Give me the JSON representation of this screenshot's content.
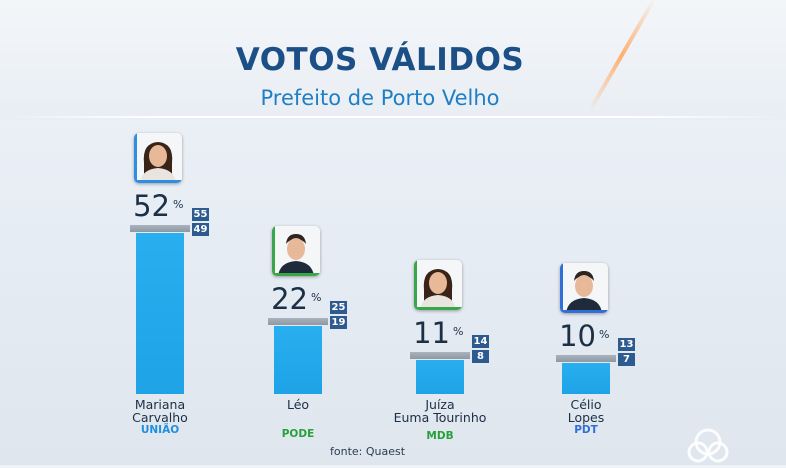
{
  "header": {
    "title": "VOTOS VÁLIDOS",
    "subtitle": "Prefeito de Porto Velho",
    "title_color": "#1b4f86",
    "subtitle_color": "#1f7fc4"
  },
  "chart_data": {
    "type": "bar",
    "title": "VOTOS VÁLIDOS",
    "subtitle": "Prefeito de Porto Velho",
    "categories": [
      "Mariana Carvalho",
      "Léo",
      "Juíza Euma Tourinho",
      "Célio Lopes"
    ],
    "values": [
      52,
      22,
      11,
      10
    ],
    "unit": "%",
    "ranges": [
      {
        "high": 55,
        "low": 49
      },
      {
        "high": 25,
        "low": 19
      },
      {
        "high": 14,
        "low": 8
      },
      {
        "high": 13,
        "low": 7
      }
    ],
    "bar_color": "#1ea3e6",
    "range_box_color": "#2e5b8f",
    "source": "fonte: Quaest",
    "grid": false
  },
  "candidates": [
    {
      "name_line1": "Mariana",
      "name_line2": "Carvalho",
      "party": "UNIÃO",
      "party_color": "#1f8fe0",
      "pct": "52",
      "pct_symbol": "%",
      "high": "55",
      "low": "49",
      "accent": "#2f8de4",
      "photo_icon": "person-photo-woman"
    },
    {
      "name_line1": "Léo",
      "name_line2": "",
      "party": "PODE",
      "party_color": "#27a13a",
      "pct": "22",
      "pct_symbol": "%",
      "high": "25",
      "low": "19",
      "accent": "#3aa64a",
      "photo_icon": "person-photo-man"
    },
    {
      "name_line1": "Juíza",
      "name_line2": "Euma Tourinho",
      "party": "MDB",
      "party_color": "#27a13a",
      "pct": "11",
      "pct_symbol": "%",
      "high": "14",
      "low": "8",
      "accent": "#3aa64a",
      "photo_icon": "person-photo-woman"
    },
    {
      "name_line1": "Célio",
      "name_line2": "Lopes",
      "party": "PDT",
      "party_color": "#2f6fd6",
      "pct": "10",
      "pct_symbol": "%",
      "high": "13",
      "low": "7",
      "accent": "#2f6fd6",
      "photo_icon": "person-photo-man"
    }
  ],
  "footer": {
    "source": "fonte: Quaest",
    "logo_icon": "broadcaster-logo-icon"
  }
}
